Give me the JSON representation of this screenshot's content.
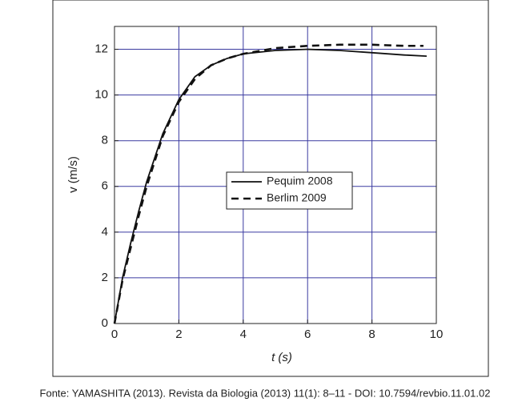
{
  "chart_data": {
    "type": "line",
    "xlabel": "t (s)",
    "ylabel": "v (m/s)",
    "caption": "Fonte: YAMASHITA (2013). Revista da Biologia (2013) 11(1): 8–11 - DOI: 10.7594/revbio.11.01.02",
    "xlim": [
      0,
      10
    ],
    "ylim": [
      0,
      13
    ],
    "xticks": [
      0,
      2,
      4,
      6,
      8,
      10
    ],
    "yticks": [
      0,
      2,
      4,
      6,
      8,
      10,
      12
    ],
    "grid": true,
    "legend": "center",
    "series": [
      {
        "name": "Pequim 2008",
        "color": "#111111",
        "dash": "solid",
        "x": [
          0,
          0.25,
          0.5,
          0.75,
          1,
          1.5,
          2,
          2.5,
          3,
          3.5,
          4,
          5,
          6,
          7,
          8,
          9,
          9.7
        ],
        "values": [
          0,
          2.0,
          3.5,
          4.9,
          6.2,
          8.3,
          9.8,
          10.8,
          11.3,
          11.6,
          11.8,
          11.95,
          12.0,
          11.95,
          11.85,
          11.75,
          11.7
        ]
      },
      {
        "name": "Berlim 2009",
        "color": "#111111",
        "dash": "dashed",
        "x": [
          0,
          0.25,
          0.5,
          0.75,
          1,
          1.5,
          2,
          2.5,
          3,
          3.5,
          4,
          5,
          6,
          7,
          8,
          9,
          9.6
        ],
        "values": [
          0,
          1.9,
          3.3,
          4.7,
          6.0,
          8.2,
          9.7,
          10.7,
          11.3,
          11.6,
          11.8,
          12.05,
          12.15,
          12.2,
          12.2,
          12.15,
          12.15
        ]
      }
    ]
  }
}
